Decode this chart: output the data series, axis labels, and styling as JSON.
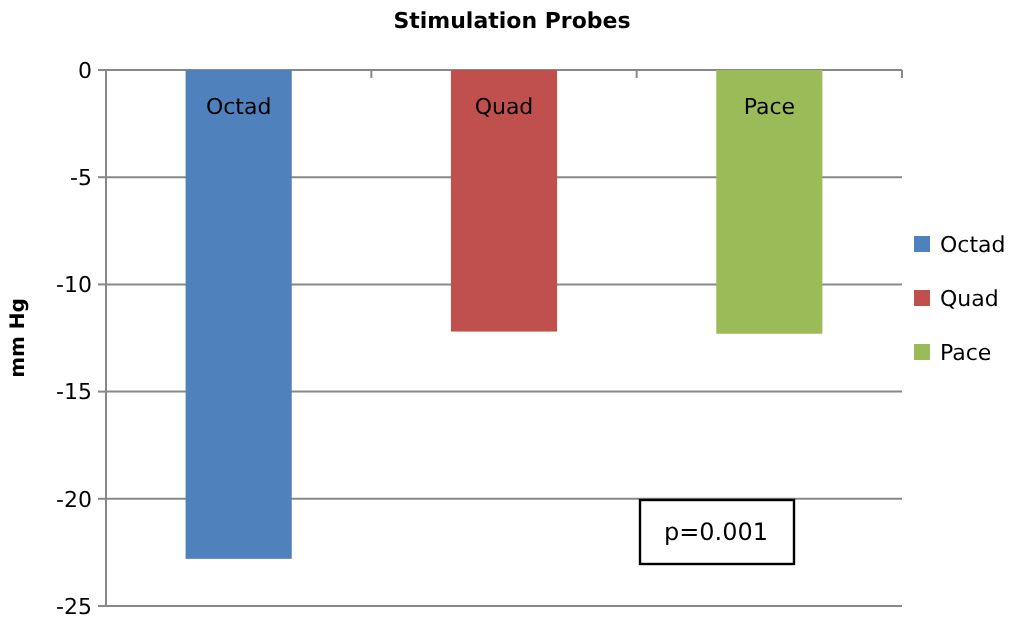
{
  "chart_data": {
    "type": "bar",
    "title": "Stimulation Probes",
    "ylabel": "mm Hg",
    "categories": [
      "Octad",
      "Quad",
      "Pace"
    ],
    "stacked": true,
    "series": [
      {
        "name": "Octad",
        "color": "#4f81bd",
        "values": [
          -22.8,
          null,
          null
        ]
      },
      {
        "name": "Quad",
        "color": "#c0504d",
        "values": [
          null,
          -12.2,
          null
        ]
      },
      {
        "name": "Pace",
        "color": "#9bbb59",
        "values": [
          null,
          null,
          -12.3
        ]
      }
    ],
    "ylim": [
      -25,
      0
    ],
    "yticks": [
      0,
      -5,
      -10,
      -15,
      -20,
      -25
    ],
    "grid": "y",
    "legend": "right",
    "annotations": [
      "p=0.001"
    ]
  }
}
